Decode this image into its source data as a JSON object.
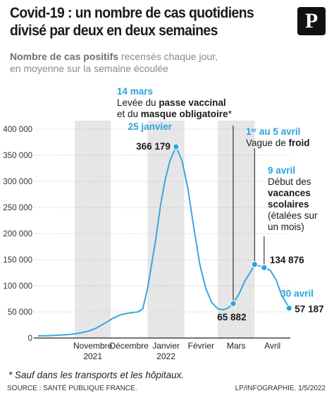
{
  "header": {
    "title_line1": "Covid-19 : un nombre de cas quotidiens",
    "title_line2": "divisé par deux en deux semaines",
    "logo_letter": "P",
    "subtitle_bold": "Nombre de cas positifs",
    "subtitle_rest1": " recensés chaque jour,",
    "subtitle_line2": "en moyenne sur la semaine écoulée"
  },
  "footer": {
    "footnote": "* Sauf dans les transports et les hôpitaux.",
    "source": "SOURCE : SANTÉ PUBLIQUE FRANCE.",
    "credit": "LP/INFOGRAPHIE.  1/5/2022"
  },
  "colors": {
    "line": "#3aa6dd",
    "accent": "#29a3dc",
    "band": "#e6e6e6",
    "grid": "#bdbdbd",
    "text": "#1a1a1a"
  },
  "chart_data": {
    "type": "line",
    "series": [
      {
        "values": [
          {
            "x": "2021-10-01",
            "y": 4000
          },
          {
            "x": "2021-10-08",
            "y": 4500
          },
          {
            "x": "2021-10-15",
            "y": 5000
          },
          {
            "x": "2021-10-22",
            "y": 6000
          },
          {
            "x": "2021-10-29",
            "y": 7000
          },
          {
            "x": "2021-11-05",
            "y": 9500
          },
          {
            "x": "2021-11-12",
            "y": 13000
          },
          {
            "x": "2021-11-19",
            "y": 19000
          },
          {
            "x": "2021-11-26",
            "y": 28000
          },
          {
            "x": "2021-12-03",
            "y": 38000
          },
          {
            "x": "2021-12-10",
            "y": 45000
          },
          {
            "x": "2021-12-17",
            "y": 48000
          },
          {
            "x": "2021-12-24",
            "y": 50000
          },
          {
            "x": "2021-12-28",
            "y": 56000
          },
          {
            "x": "2022-01-01",
            "y": 95000
          },
          {
            "x": "2022-01-04",
            "y": 135000
          },
          {
            "x": "2022-01-08",
            "y": 190000
          },
          {
            "x": "2022-01-12",
            "y": 255000
          },
          {
            "x": "2022-01-16",
            "y": 305000
          },
          {
            "x": "2022-01-20",
            "y": 340000
          },
          {
            "x": "2022-01-25",
            "y": 366179
          },
          {
            "x": "2022-01-30",
            "y": 340000
          },
          {
            "x": "2022-02-04",
            "y": 285000
          },
          {
            "x": "2022-02-09",
            "y": 210000
          },
          {
            "x": "2022-02-14",
            "y": 140000
          },
          {
            "x": "2022-02-19",
            "y": 95000
          },
          {
            "x": "2022-02-24",
            "y": 68000
          },
          {
            "x": "2022-03-01",
            "y": 56000
          },
          {
            "x": "2022-03-06",
            "y": 54000
          },
          {
            "x": "2022-03-10",
            "y": 58000
          },
          {
            "x": "2022-03-14",
            "y": 65882
          },
          {
            "x": "2022-03-19",
            "y": 85000
          },
          {
            "x": "2022-03-24",
            "y": 110000
          },
          {
            "x": "2022-03-29",
            "y": 128000
          },
          {
            "x": "2022-04-01",
            "y": 141000
          },
          {
            "x": "2022-04-05",
            "y": 138000
          },
          {
            "x": "2022-04-09",
            "y": 134876
          },
          {
            "x": "2022-04-14",
            "y": 130000
          },
          {
            "x": "2022-04-19",
            "y": 112000
          },
          {
            "x": "2022-04-24",
            "y": 80000
          },
          {
            "x": "2022-04-27",
            "y": 70000
          },
          {
            "x": "2022-04-30",
            "y": 57187
          }
        ]
      }
    ],
    "ylim": [
      0,
      400000
    ],
    "yticks": [
      {
        "value": 0,
        "label": "0"
      },
      {
        "value": 50000,
        "label": "50 000"
      },
      {
        "value": 100000,
        "label": "100 000"
      },
      {
        "value": 150000,
        "label": "150 000"
      },
      {
        "value": 200000,
        "label": "200 000"
      },
      {
        "value": 250000,
        "label": "250 000"
      },
      {
        "value": 300000,
        "label": "300 000"
      },
      {
        "value": 350000,
        "label": "350 000"
      },
      {
        "value": 400000,
        "label": "400 000"
      }
    ],
    "xlim": [
      "2021-10-01",
      "2022-05-01"
    ],
    "months": [
      {
        "start": "2021-11-01",
        "end": "2021-12-01",
        "label": "Novembre",
        "sublabel": "2021",
        "shaded": true
      },
      {
        "start": "2021-12-01",
        "end": "2022-01-01",
        "label": "Décembre",
        "sublabel": "",
        "shaded": false
      },
      {
        "start": "2022-01-01",
        "end": "2022-02-01",
        "label": "Janvier",
        "sublabel": "2022",
        "shaded": true
      },
      {
        "start": "2022-02-01",
        "end": "2022-03-01",
        "label": "Février",
        "sublabel": "",
        "shaded": false
      },
      {
        "start": "2022-03-01",
        "end": "2022-04-01",
        "label": "Mars",
        "sublabel": "",
        "shaded": true
      },
      {
        "start": "2022-04-01",
        "end": "2022-05-01",
        "label": "Avril",
        "sublabel": "",
        "shaded": false
      }
    ],
    "grid": true,
    "points": [
      {
        "x": "2022-01-25",
        "y": 366179,
        "date_label": "25 janvier",
        "value_label": "366 179"
      },
      {
        "x": "2022-03-14",
        "y": 65882,
        "date_label": "",
        "value_label": "65 882"
      },
      {
        "x": "2022-04-01",
        "y": 141000,
        "date_label": "",
        "value_label": ""
      },
      {
        "x": "2022-04-09",
        "y": 134876,
        "date_label": "",
        "value_label": "134 876"
      },
      {
        "x": "2022-04-30",
        "y": 57187,
        "date_label": "30 avril",
        "value_label": "57 187"
      }
    ],
    "annotations": {
      "march14": {
        "date": "14 mars",
        "text1_pre": "Levée du ",
        "text1_bold": "passe vaccinal",
        "text2_pre": "et du ",
        "text2_bold": "masque obligatoire",
        "text2_post": "*"
      },
      "april1": {
        "date_num": "1",
        "date_sup": "er",
        "date_rest": " au 5 avril",
        "text_pre": "Vague de ",
        "text_bold": "froid"
      },
      "april9": {
        "date": "9 avril",
        "line1": "Début des",
        "line2": "vacances",
        "line3": "scolaires",
        "line4": "(étalées sur",
        "line5": "un mois)"
      }
    }
  }
}
